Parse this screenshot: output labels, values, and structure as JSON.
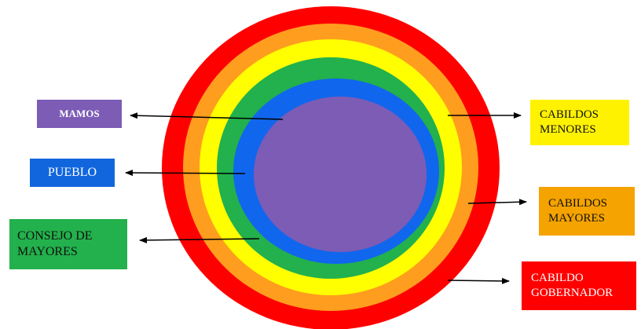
{
  "rings": [
    {
      "name": "cabildo-gobernador-ring",
      "color": "#ff0000"
    },
    {
      "name": "cabildos-mayores-ring",
      "color": "#ff9d1e"
    },
    {
      "name": "cabildos-menores-ring",
      "color": "#ffff00"
    },
    {
      "name": "consejo-ring",
      "color": "#22b14c"
    },
    {
      "name": "pueblo-ring",
      "color": "#1166ee"
    },
    {
      "name": "mamos-center",
      "color": "#7c5cb5"
    }
  ],
  "labels": {
    "mamos": "MAMOS",
    "pueblo": "PUEBLO",
    "consejo": "CONSEJO DE\nMAYORES",
    "cabildos_menores": "CABILDOS\nMENORES",
    "cabildos_mayores": "CABILDOS\nMAYORES",
    "cabildo_gobernador": "CABILDO\nGOBERNADOR"
  }
}
